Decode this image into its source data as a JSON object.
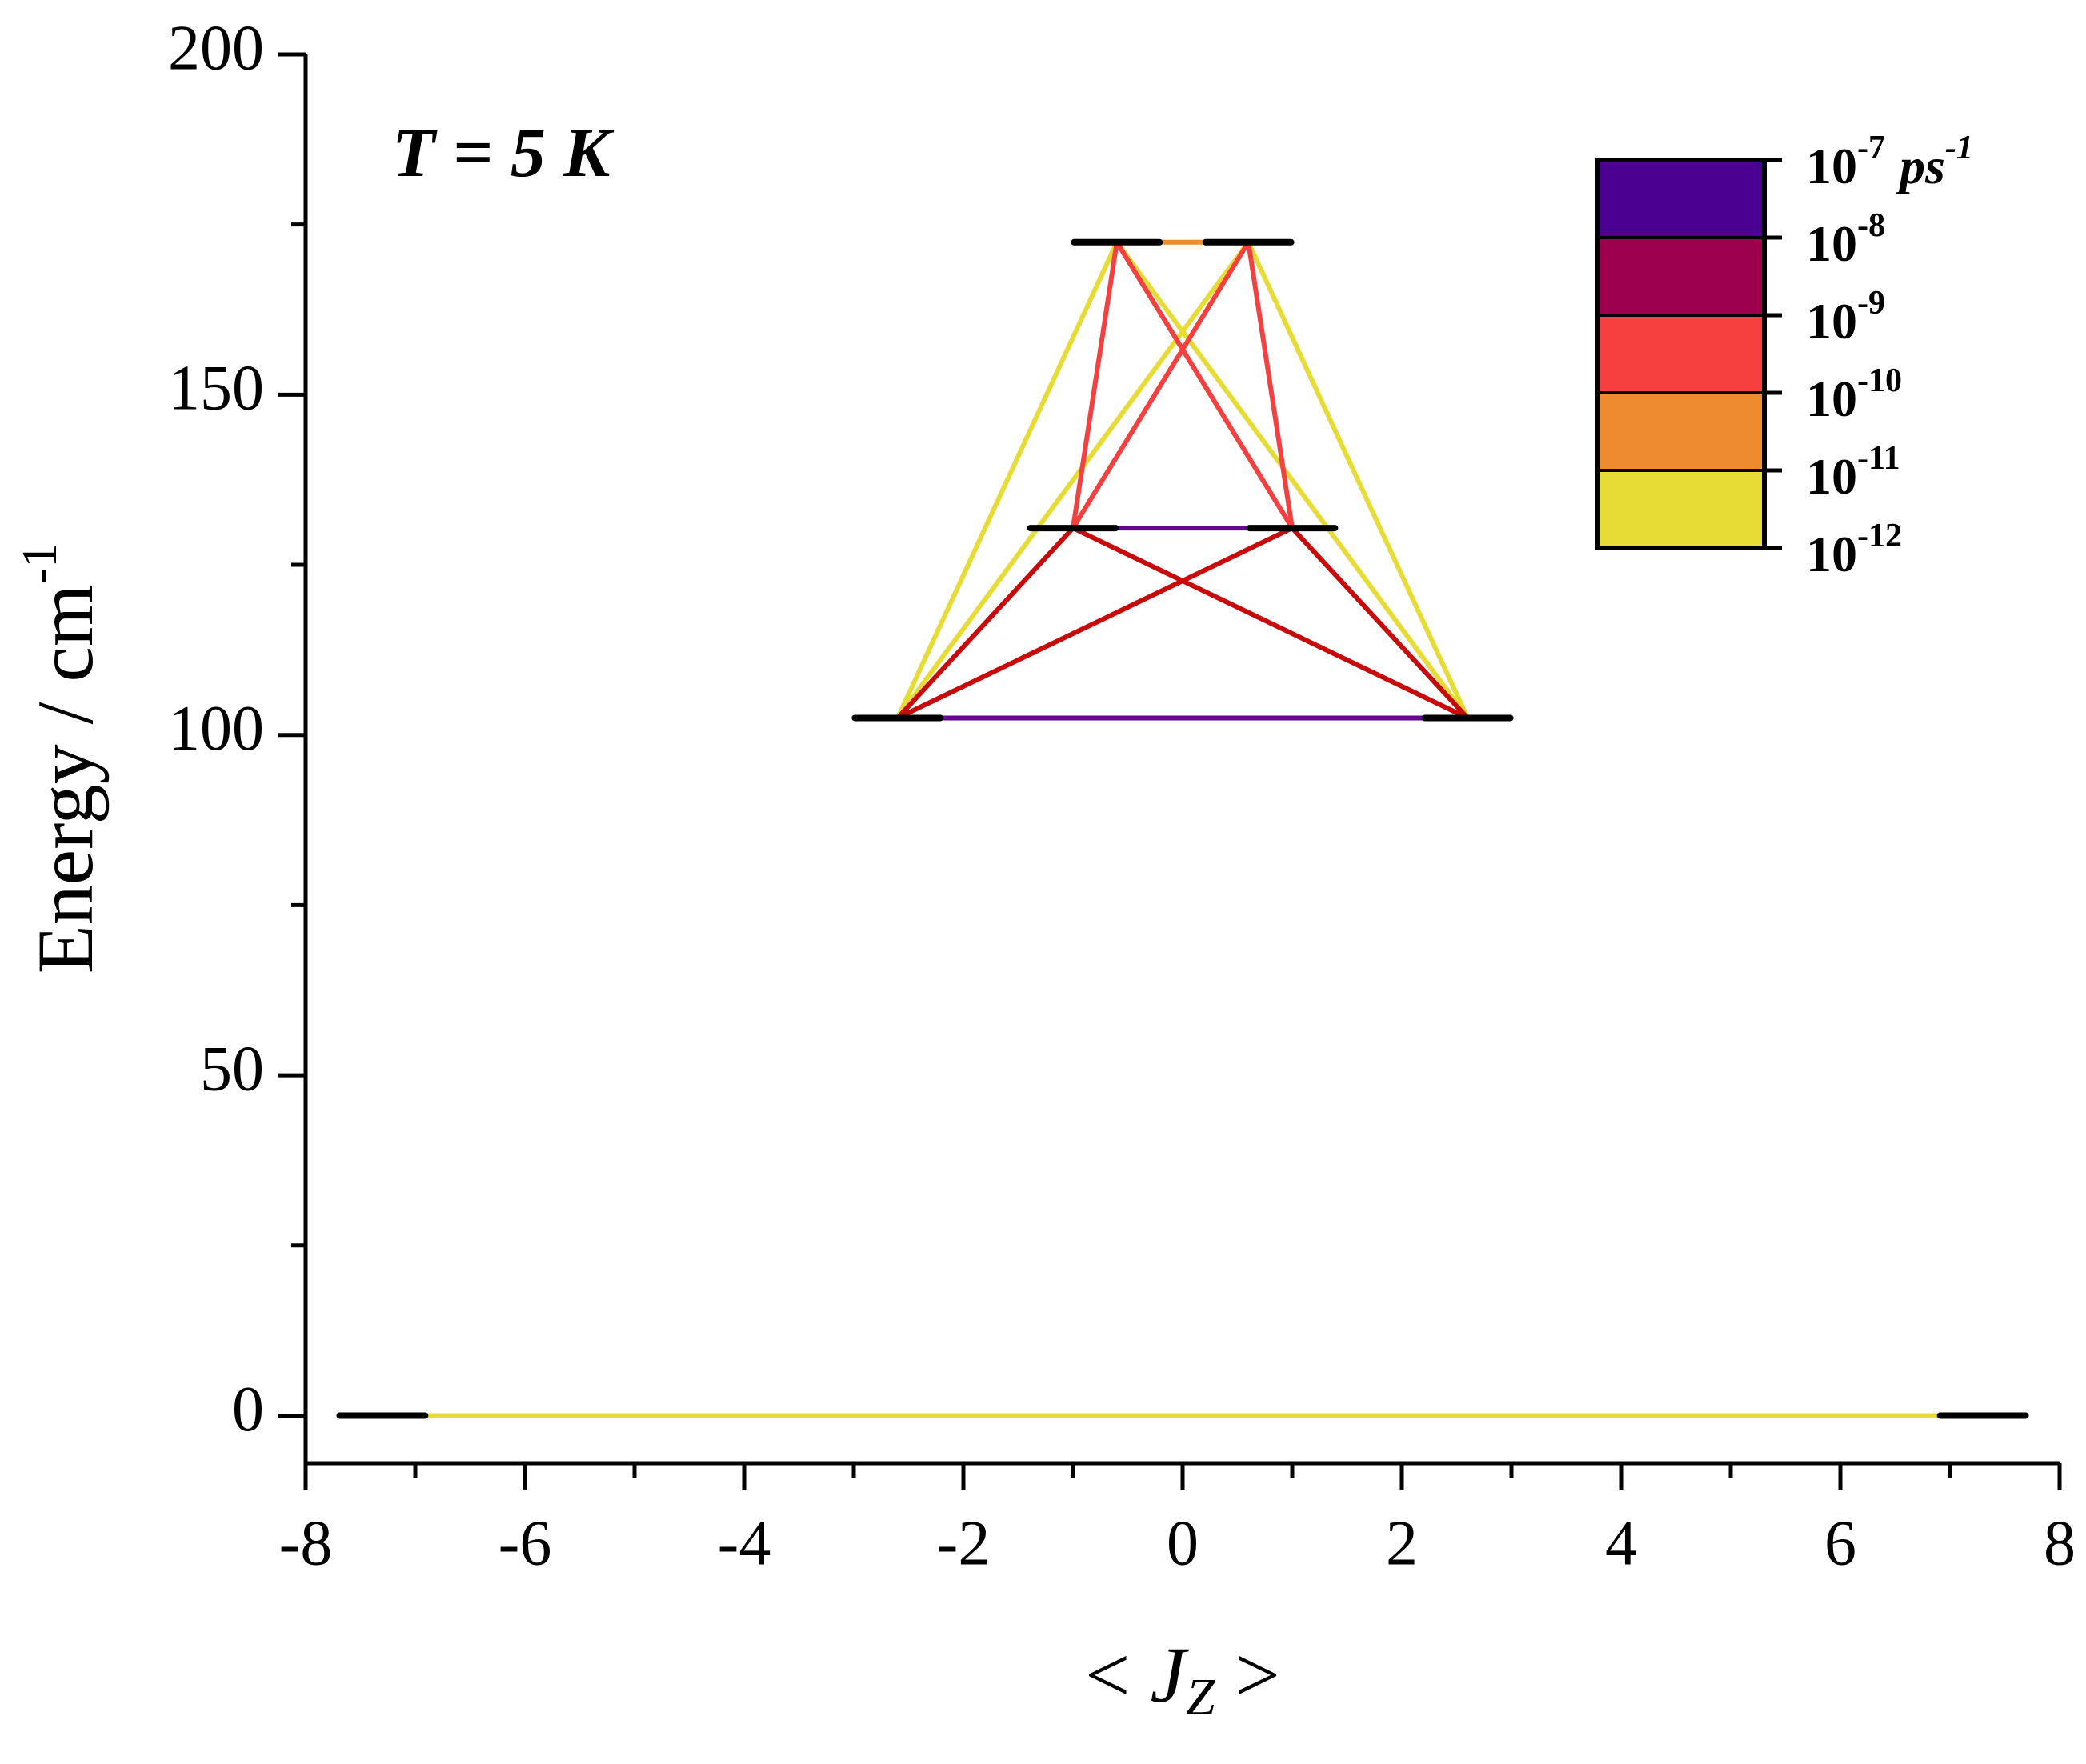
{
  "chart_data": {
    "type": "energy-levels",
    "annotation": "T = 5 K",
    "xlabel": {
      "pre": "< ",
      "main": "J",
      "sub": "Z",
      "post": " >"
    },
    "ylabel": {
      "text": "Energy / cm",
      "sup": "-1"
    },
    "xlim": [
      -8,
      8
    ],
    "xticks": [
      -8,
      -6,
      -4,
      -2,
      0,
      2,
      4,
      6,
      8
    ],
    "xminorticks": [
      -7,
      -5,
      -3,
      -1,
      1,
      3,
      5,
      7
    ],
    "ylim": [
      -7,
      200
    ],
    "yticks": [
      0,
      50,
      100,
      150,
      200
    ],
    "yminorticks": [
      25,
      75,
      125,
      175
    ],
    "level_color": "#000000",
    "levels": {
      "x": [
        -7.3,
        7.3,
        -2.6,
        2.6,
        -1.0,
        1.0,
        -0.6,
        0.6
      ],
      "y": [
        0,
        0,
        102.5,
        102.5,
        130.4,
        130.4,
        172.4,
        172.4
      ]
    },
    "transitions": [
      {
        "x": [
          -7.3,
          7.3
        ],
        "y": [
          0,
          0
        ],
        "color": "#e6dc35"
      },
      {
        "x": [
          -2.6,
          -0.6
        ],
        "y": [
          102.5,
          172.4
        ],
        "color": "#e6dc35"
      },
      {
        "x": [
          -2.6,
          0.6
        ],
        "y": [
          102.5,
          172.4
        ],
        "color": "#e6dc35"
      },
      {
        "x": [
          2.6,
          0.6
        ],
        "y": [
          102.5,
          172.4
        ],
        "color": "#e6dc35"
      },
      {
        "x": [
          2.6,
          -0.6
        ],
        "y": [
          102.5,
          172.4
        ],
        "color": "#e6dc35"
      },
      {
        "x": [
          -1.0,
          -0.6
        ],
        "y": [
          130.4,
          172.4
        ],
        "color": "#f64040"
      },
      {
        "x": [
          -1.0,
          0.6
        ],
        "y": [
          130.4,
          172.4
        ],
        "color": "#f64040"
      },
      {
        "x": [
          1.0,
          0.6
        ],
        "y": [
          130.4,
          172.4
        ],
        "color": "#f64040"
      },
      {
        "x": [
          1.0,
          -0.6
        ],
        "y": [
          130.4,
          172.4
        ],
        "color": "#f64040"
      },
      {
        "x": [
          -2.6,
          -1.0
        ],
        "y": [
          102.5,
          130.4
        ],
        "color": "#c80a0a"
      },
      {
        "x": [
          -2.6,
          1.0
        ],
        "y": [
          102.5,
          130.4
        ],
        "color": "#c80a0a"
      },
      {
        "x": [
          2.6,
          1.0
        ],
        "y": [
          102.5,
          130.4
        ],
        "color": "#c80a0a"
      },
      {
        "x": [
          2.6,
          -1.0
        ],
        "y": [
          102.5,
          130.4
        ],
        "color": "#c80a0a"
      },
      {
        "x": [
          -2.6,
          2.6
        ],
        "y": [
          102.5,
          102.5
        ],
        "color": "#65078c"
      },
      {
        "x": [
          -1.0,
          1.0
        ],
        "y": [
          130.4,
          130.4
        ],
        "color": "#65078c"
      },
      {
        "x": [
          -0.6,
          0.6
        ],
        "y": [
          172.4,
          172.4
        ],
        "color": "#ee8a2f"
      }
    ],
    "colorbar": {
      "colors": [
        "#4b0092",
        "#9e0050",
        "#f64040",
        "#ee8a2f",
        "#e6dc35"
      ],
      "labels": [
        {
          "text": "10",
          "sup": "-7"
        },
        {
          "text": "10",
          "sup": "-8"
        },
        {
          "text": "10",
          "sup": "-9"
        },
        {
          "text": "10",
          "sup": "-10"
        },
        {
          "text": "10",
          "sup": "-11"
        },
        {
          "text": "10",
          "sup": "-12"
        }
      ],
      "unit": {
        "text": "ps",
        "sup": "-1"
      }
    }
  }
}
